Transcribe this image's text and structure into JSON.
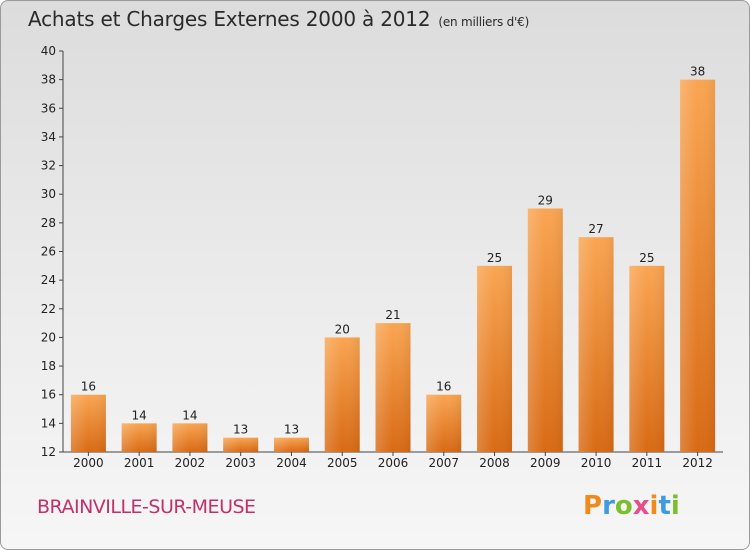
{
  "header": {
    "title": "Achats et Charges Externes 2000 à 2012",
    "subtitle": "(en milliers d'€)"
  },
  "footer": {
    "place": "BRAINVILLE-SUR-MEUSE",
    "logo": [
      "P",
      "r",
      "o",
      "x",
      "i",
      "t",
      "i"
    ],
    "logo_colors": [
      "#f08a1c",
      "#3e9be0",
      "#7cbf2e",
      "#e84e8a",
      "#f08a1c",
      "#3e9be0",
      "#7cbf2e"
    ]
  },
  "chart_data": {
    "type": "bar",
    "title": "Achats et Charges Externes 2000 à 2012",
    "subtitle": "(en milliers d'€)",
    "categories": [
      "2000",
      "2001",
      "2002",
      "2003",
      "2004",
      "2005",
      "2006",
      "2007",
      "2008",
      "2009",
      "2010",
      "2011",
      "2012"
    ],
    "values": [
      16,
      14,
      14,
      13,
      13,
      20,
      21,
      16,
      25,
      29,
      27,
      25,
      38
    ],
    "ylim": [
      12,
      40
    ],
    "yticks": [
      12,
      14,
      16,
      18,
      20,
      22,
      24,
      26,
      28,
      30,
      32,
      34,
      36,
      38,
      40
    ],
    "grid": false,
    "bar_color_top": "#f9a552",
    "bar_color_bottom": "#d86a14"
  }
}
